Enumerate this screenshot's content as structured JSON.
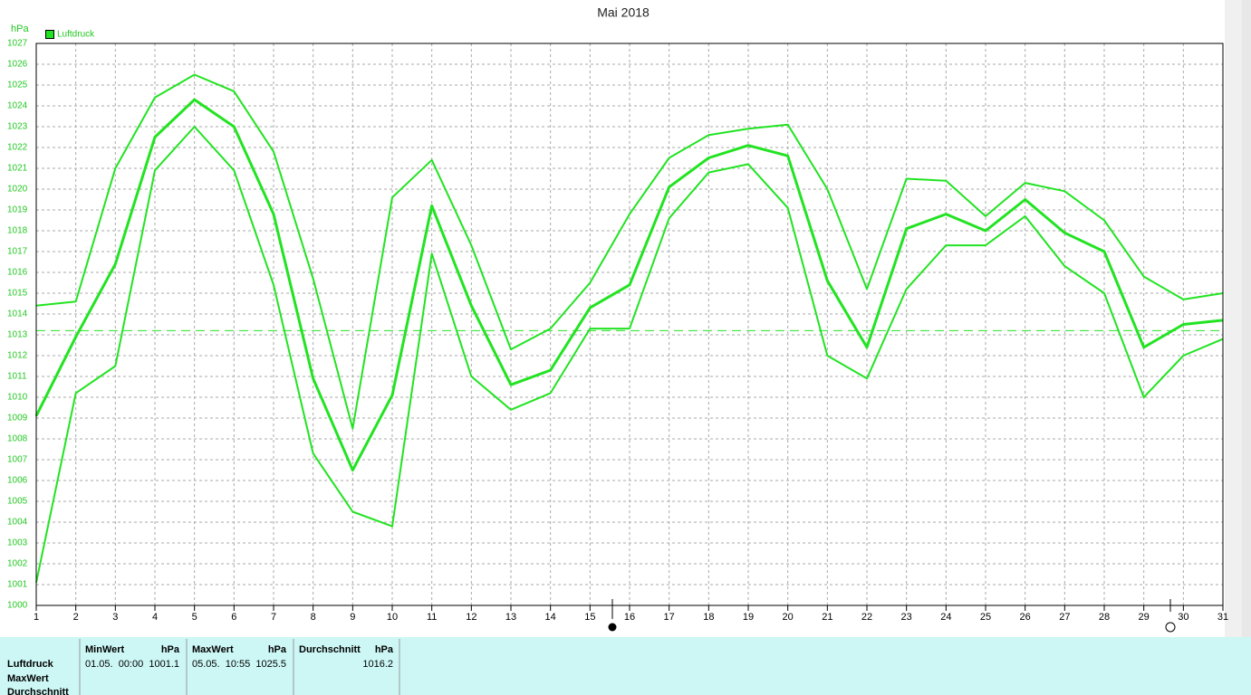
{
  "chart_data": {
    "type": "line",
    "title": "Mai 2018",
    "y_label": "hPa",
    "legend": [
      "Luftdruck"
    ],
    "x": [
      1,
      2,
      3,
      4,
      5,
      6,
      7,
      8,
      9,
      10,
      11,
      12,
      13,
      14,
      15,
      16,
      17,
      18,
      19,
      20,
      21,
      22,
      23,
      24,
      25,
      26,
      27,
      28,
      29,
      30,
      31
    ],
    "xlim": [
      1,
      31
    ],
    "xticks": [
      1,
      2,
      3,
      4,
      5,
      6,
      7,
      8,
      9,
      10,
      11,
      12,
      13,
      14,
      15,
      16,
      17,
      18,
      19,
      20,
      21,
      22,
      23,
      24,
      25,
      26,
      27,
      28,
      29,
      30,
      31
    ],
    "ylim": [
      1000,
      1027
    ],
    "yticks": [
      1000,
      1001,
      1002,
      1003,
      1004,
      1005,
      1006,
      1007,
      1008,
      1009,
      1010,
      1011,
      1012,
      1013,
      1014,
      1015,
      1016,
      1017,
      1018,
      1019,
      1020,
      1021,
      1022,
      1023,
      1024,
      1025,
      1026,
      1027
    ],
    "grid": true,
    "reference_line": 1013.2,
    "series": [
      {
        "color": "#22e322",
        "values": [
          1014.4,
          1014.6,
          1021.0,
          1024.4,
          1025.5,
          1024.7,
          1021.8,
          1015.7,
          1008.5,
          1019.6,
          1021.4,
          1017.3,
          1012.3,
          1013.3,
          1015.5,
          1018.8,
          1021.5,
          1022.6,
          1022.9,
          1023.1,
          1020.0,
          1015.2,
          1020.5,
          1020.4,
          1018.7,
          1020.3,
          1019.9,
          1018.5,
          1015.8,
          1014.7,
          1015.0
        ]
      },
      {
        "color": "#22e322",
        "values": [
          1009.1,
          1012.9,
          1016.4,
          1022.5,
          1024.3,
          1023.0,
          1018.8,
          1010.9,
          1006.5,
          1010.1,
          1019.2,
          1014.4,
          1010.6,
          1011.3,
          1014.3,
          1015.4,
          1020.1,
          1021.5,
          1022.1,
          1021.6,
          1015.6,
          1012.4,
          1018.1,
          1018.8,
          1018.0,
          1019.5,
          1017.9,
          1017.0,
          1012.4,
          1013.5,
          1013.7
        ]
      },
      {
        "color": "#22e322",
        "values": [
          1001.1,
          1010.2,
          1011.5,
          1020.9,
          1023.0,
          1020.9,
          1015.4,
          1007.3,
          1004.5,
          1003.8,
          1016.9,
          1011.0,
          1009.4,
          1010.2,
          1013.3,
          1013.3,
          1018.6,
          1020.8,
          1021.2,
          1019.1,
          1012.0,
          1010.9,
          1015.2,
          1017.3,
          1017.3,
          1018.7,
          1016.3,
          1015.0,
          1010.0,
          1012.0,
          1012.8
        ]
      }
    ]
  },
  "table": {
    "row_labels": [
      "Luftdruck",
      "MaxWert",
      "Durchschnitt"
    ],
    "columns": [
      {
        "header": "MinWert",
        "unit": "hPa",
        "time": "01.05.  00:00",
        "value": "1001.1"
      },
      {
        "header": "MaxWert",
        "unit": "hPa",
        "time": "05.05.  10:55",
        "value": "1025.5"
      },
      {
        "header": "Durchschnitt",
        "unit": "hPa",
        "value": "1016.2"
      }
    ]
  }
}
